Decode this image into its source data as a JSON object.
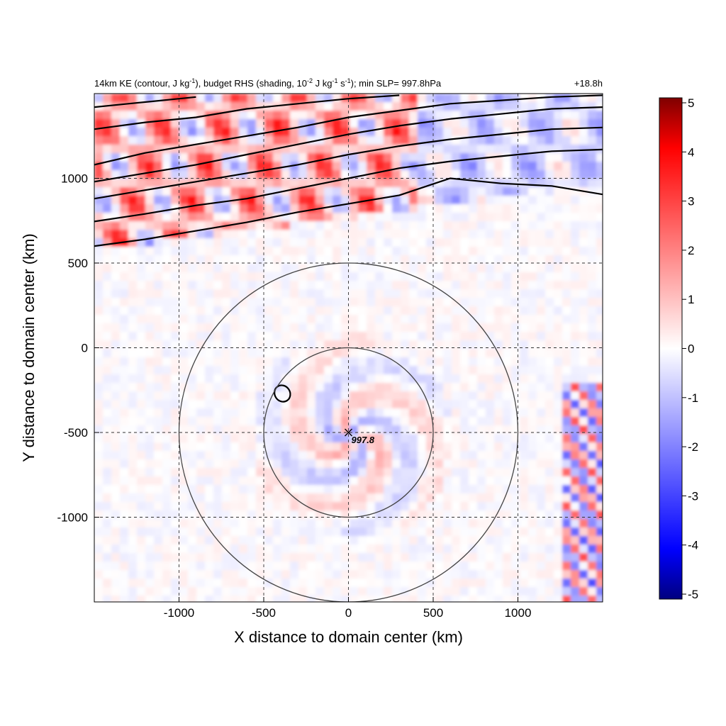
{
  "chart_data": {
    "type": "heatmap",
    "title_left": {
      "text": "14km KE (contour, J kg",
      "sup1": "-1",
      "mid1": "), budget RHS (shading, 10",
      "sup2": "-2",
      "mid2": " J kg",
      "sup3": "-1",
      "mid3": " s",
      "sup4": "-1",
      "tail": "); min SLP= 997.8hPa"
    },
    "title_right": "+18.8h",
    "xlabel": "X distance to domain center (km)",
    "ylabel": "Y distance to domain center (km)",
    "xlim": [
      -1500,
      1500
    ],
    "ylim": [
      -1500,
      1500
    ],
    "xticks": [
      -1000,
      -500,
      0,
      500,
      1000
    ],
    "yticks": [
      1000,
      500,
      0,
      -500,
      -1000
    ],
    "xtick_labels": [
      "-1000",
      "-500",
      "0",
      "500",
      "1000"
    ],
    "ytick_labels": [
      "1000",
      "500",
      "0",
      "-500",
      "-1000"
    ],
    "grid": "dashed",
    "colorbar": {
      "min": -5,
      "max": 5,
      "ticks": [
        5,
        4,
        3,
        2,
        1,
        0,
        -1,
        -2,
        -3,
        -4,
        -5
      ],
      "tick_labels": [
        "5",
        "4",
        "3",
        "2",
        "1",
        "0",
        "-1",
        "-2",
        "-3",
        "-4",
        "-5"
      ],
      "colors": [
        "#00007f",
        "#0000ff",
        "#ffffff",
        "#ff0000",
        "#7f0000"
      ]
    },
    "center_marker": {
      "x": 0,
      "y": -500,
      "label": "997.8"
    },
    "range_circles": [
      {
        "center": [
          0,
          -500
        ],
        "radius_km": 500
      },
      {
        "center": [
          0,
          -500
        ],
        "radius_km": 1000
      }
    ],
    "ke_contours": [
      [
        [
          -1500,
          600
        ],
        [
          -1200,
          640
        ],
        [
          -900,
          690
        ],
        [
          -600,
          740
        ],
        [
          -300,
          800
        ],
        [
          0,
          850
        ],
        [
          300,
          900
        ],
        [
          600,
          1000
        ],
        [
          900,
          970
        ],
        [
          1200,
          955
        ],
        [
          1500,
          905
        ]
      ],
      [
        [
          -1500,
          745
        ],
        [
          -1200,
          790
        ],
        [
          -900,
          840
        ],
        [
          -600,
          880
        ],
        [
          -300,
          940
        ],
        [
          0,
          1000
        ],
        [
          300,
          1060
        ],
        [
          600,
          1100
        ],
        [
          900,
          1130
        ],
        [
          1200,
          1160
        ],
        [
          1500,
          1170
        ]
      ],
      [
        [
          -1500,
          880
        ],
        [
          -1200,
          930
        ],
        [
          -900,
          980
        ],
        [
          -600,
          1030
        ],
        [
          -300,
          1080
        ],
        [
          0,
          1140
        ],
        [
          300,
          1190
        ],
        [
          600,
          1230
        ],
        [
          900,
          1260
        ],
        [
          1200,
          1290
        ],
        [
          1500,
          1300
        ]
      ],
      [
        [
          -1500,
          980
        ],
        [
          -1200,
          1030
        ],
        [
          -900,
          1080
        ],
        [
          -600,
          1140
        ],
        [
          -300,
          1200
        ],
        [
          0,
          1260
        ],
        [
          300,
          1310
        ],
        [
          600,
          1350
        ],
        [
          900,
          1380
        ],
        [
          1200,
          1410
        ],
        [
          1500,
          1420
        ]
      ],
      [
        [
          -1500,
          1080
        ],
        [
          -1200,
          1150
        ],
        [
          -900,
          1200
        ],
        [
          -600,
          1250
        ],
        [
          -300,
          1300
        ],
        [
          0,
          1360
        ],
        [
          300,
          1400
        ],
        [
          600,
          1440
        ],
        [
          900,
          1460
        ],
        [
          1200,
          1480
        ],
        [
          1500,
          1490
        ]
      ],
      [
        [
          -1500,
          1290
        ],
        [
          -1200,
          1330
        ],
        [
          -900,
          1360
        ],
        [
          -600,
          1410
        ],
        [
          -300,
          1440
        ],
        [
          0,
          1470
        ],
        [
          300,
          1490
        ]
      ],
      [
        [
          -1500,
          1420
        ],
        [
          -1300,
          1440
        ],
        [
          -1100,
          1460
        ],
        [
          -900,
          1480
        ]
      ]
    ],
    "small_contour": {
      "center": [
        -390,
        -270
      ],
      "rx_km": 45,
      "ry_km": 50
    }
  }
}
